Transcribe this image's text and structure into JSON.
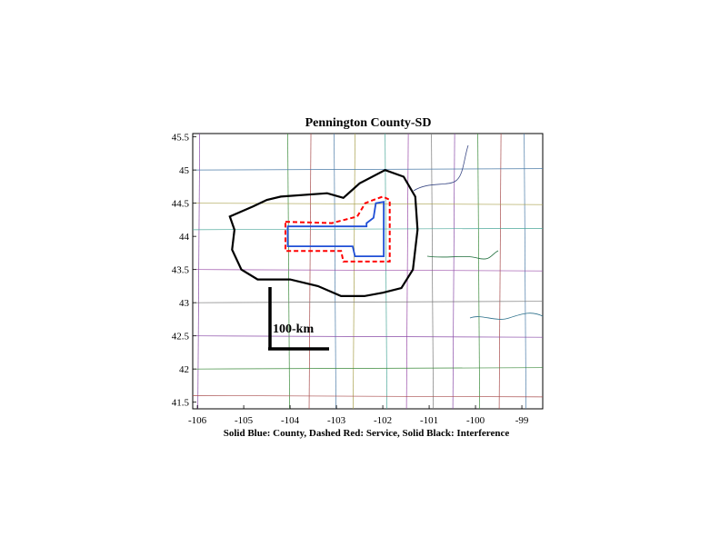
{
  "title": "Pennington County-SD",
  "caption": "Solid Blue: County, Dashed Red: Service, Solid Black: Interference",
  "scale_bar_label": "100-km",
  "x_ticks": [
    "-106",
    "-105",
    "-104",
    "-103",
    "-102",
    "-101",
    "-100",
    "-99"
  ],
  "y_ticks": [
    "45.5",
    "45",
    "44.5",
    "44",
    "43.5",
    "43",
    "42.5",
    "42",
    "41.5"
  ],
  "legend": {
    "county": {
      "label": "County",
      "color": "#1f4fd6",
      "style": "solid"
    },
    "service": {
      "label": "Service",
      "color": "#ff0000",
      "style": "dashed"
    },
    "interference": {
      "label": "Interference",
      "color": "#000000",
      "style": "solid"
    }
  },
  "chart_data": {
    "type": "map",
    "xlim": [
      -106.1,
      -98.55
    ],
    "ylim": [
      41.4,
      45.55
    ],
    "county": [
      [
        -104.05,
        44.15
      ],
      [
        -102.35,
        44.15
      ],
      [
        -102.35,
        44.2
      ],
      [
        -102.2,
        44.28
      ],
      [
        -102.15,
        44.5
      ],
      [
        -101.98,
        44.52
      ],
      [
        -101.98,
        43.7
      ],
      [
        -102.6,
        43.7
      ],
      [
        -102.65,
        43.85
      ],
      [
        -104.05,
        43.85
      ]
    ],
    "service": [
      [
        -104.1,
        44.22
      ],
      [
        -103.1,
        44.2
      ],
      [
        -102.55,
        44.3
      ],
      [
        -102.38,
        44.5
      ],
      [
        -102.2,
        44.55
      ],
      [
        -102,
        44.6
      ],
      [
        -101.85,
        44.55
      ],
      [
        -101.85,
        43.62
      ],
      [
        -102.85,
        43.62
      ],
      [
        -102.9,
        43.78
      ],
      [
        -104.1,
        43.78
      ]
    ],
    "interference": [
      [
        -104.2,
        44.6
      ],
      [
        -103.2,
        44.65
      ],
      [
        -102.85,
        44.58
      ],
      [
        -102.5,
        44.8
      ],
      [
        -101.95,
        45.0
      ],
      [
        -101.55,
        44.9
      ],
      [
        -101.3,
        44.6
      ],
      [
        -101.25,
        44.1
      ],
      [
        -101.35,
        43.5
      ],
      [
        -101.6,
        43.22
      ],
      [
        -102.0,
        43.15
      ],
      [
        -102.4,
        43.1
      ],
      [
        -102.9,
        43.1
      ],
      [
        -103.4,
        43.25
      ],
      [
        -104.0,
        43.35
      ],
      [
        -104.7,
        43.35
      ],
      [
        -105.05,
        43.5
      ],
      [
        -105.25,
        43.8
      ],
      [
        -105.2,
        44.1
      ],
      [
        -105.3,
        44.3
      ],
      [
        -104.8,
        44.45
      ],
      [
        -104.5,
        44.55
      ]
    ],
    "county_lines_vertical": [
      -105.95,
      -104.05,
      -103.55,
      -103.05,
      -102.6,
      -101.95,
      -101.45,
      -100.95,
      -100.45,
      -99.95,
      -99.45,
      -98.95
    ],
    "county_lines_horizontal": [
      45.0,
      44.5,
      44.1,
      43.5,
      43.0,
      42.5,
      42.0,
      41.6
    ]
  }
}
